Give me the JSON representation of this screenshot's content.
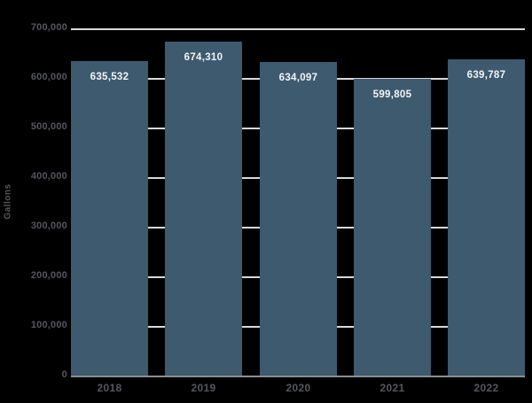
{
  "chart_data": {
    "type": "bar",
    "title": "",
    "categories": [
      "2018",
      "2019",
      "2020",
      "2021",
      "2022"
    ],
    "values": [
      635532,
      674310,
      634097,
      599805,
      639787
    ],
    "value_labels": [
      "635,532",
      "674,310",
      "634,097",
      "599,805",
      "639,787"
    ],
    "xlabel": "",
    "ylabel": "Gallons",
    "ylim": [
      0,
      700000
    ],
    "ytick_interval": 100000,
    "yticks": [
      0,
      100000,
      200000,
      300000,
      400000,
      500000,
      600000,
      700000
    ],
    "ytick_labels": [
      "0",
      "100,000",
      "200,000",
      "300,000",
      "400,000",
      "500,000",
      "600,000",
      "700,000"
    ],
    "grid": true,
    "legend_position": "none",
    "colors": {
      "background": "#000000",
      "bar_fill": "#3d5a6f",
      "gridline": "#d9d9d9",
      "axis_line": "#8e8e8e",
      "tick_text": "#56575c",
      "data_label_text": "#f4f4f4"
    }
  }
}
